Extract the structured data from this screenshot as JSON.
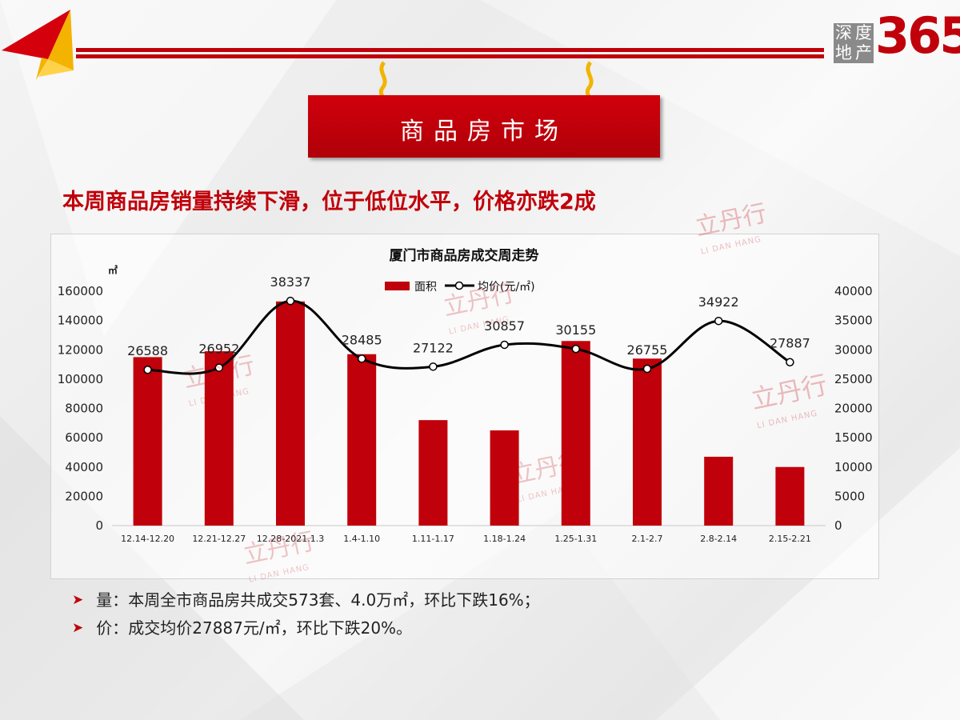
{
  "logo": {
    "chars": [
      "深",
      "度",
      "地",
      "产"
    ],
    "number": "365"
  },
  "banner": {
    "title": "商品房市场"
  },
  "headline": "本周商品房销量持续下滑，位于低位水平，价格亦跌2成",
  "watermark": {
    "cn": "立丹行",
    "en": "LI DAN HANG",
    "seal": "丹"
  },
  "chart_data": {
    "type": "bar+line",
    "title": "厦门市商品房成交周走势",
    "unit_left": "㎡",
    "categories": [
      "12.14-12.20",
      "12.21-12.27",
      "12.28-2021.1.3",
      "1.4-1.10",
      "1.11-1.17",
      "1.18-1.24",
      "1.25-1.31",
      "2.1-2.7",
      "2.8-2.14",
      "2.15-2.21"
    ],
    "series": [
      {
        "name": "面积",
        "type": "bar",
        "axis": "left",
        "color": "#c0000a",
        "values": [
          115000,
          119000,
          153000,
          117000,
          72000,
          65000,
          126000,
          114000,
          47000,
          40000
        ]
      },
      {
        "name": "均价(元/㎡)",
        "type": "line",
        "axis": "right",
        "color": "#000000",
        "values": [
          26588,
          26952,
          38337,
          28485,
          27122,
          30857,
          30155,
          26755,
          34922,
          27887
        ]
      }
    ],
    "ylim_left": [
      0,
      160000
    ],
    "yticks_left": [
      0,
      20000,
      40000,
      60000,
      80000,
      100000,
      120000,
      140000,
      160000
    ],
    "ylim_right": [
      0,
      40000
    ],
    "yticks_right": [
      0,
      5000,
      10000,
      15000,
      20000,
      25000,
      30000,
      35000,
      40000
    ],
    "legend_position": "top-center",
    "grid": false
  },
  "bullets": [
    {
      "marker": "➤",
      "text": "量：本周全市商品房共成交573套、4.0万㎡，环比下跌16%；"
    },
    {
      "marker": "➤",
      "text": "价：成交均价27887元/㎡，环比下跌20%。"
    }
  ]
}
